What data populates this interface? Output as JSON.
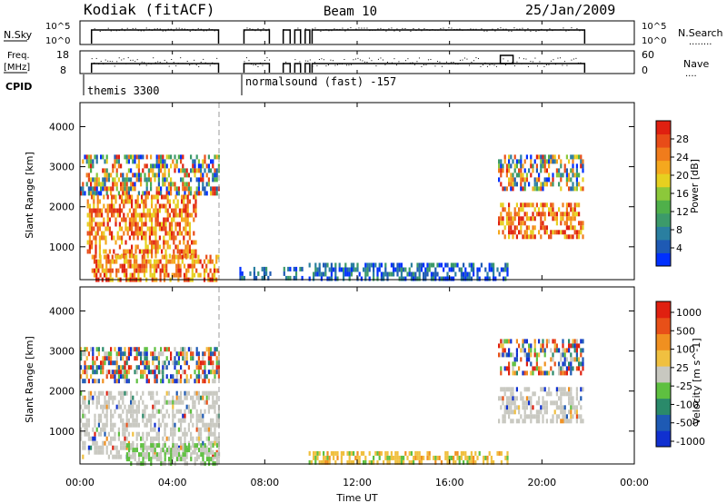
{
  "header": {
    "station": "Kodiak (fitACF)",
    "beam": "Beam 10",
    "date": "25/Jan/2009"
  },
  "strip_panels": {
    "nsky": {
      "left_label": "N.Sky",
      "left_ticks": [
        "10^5",
        "10^0"
      ],
      "right_label": "N.Search",
      "right_legend": "........",
      "right_ticks": [
        "10^5",
        "10^0"
      ]
    },
    "freq": {
      "left_label_1": "Freq.",
      "left_label_2": "[MHz]",
      "left_ticks": [
        "18",
        "8"
      ],
      "right_label": "Nave",
      "right_legend": "....",
      "right_ticks": [
        "60",
        "0"
      ]
    },
    "cpid": {
      "label": "CPID",
      "segments": [
        {
          "label": "themis 3300",
          "start_hour": 0
        },
        {
          "label": "normalsound (fast) -157",
          "start_hour": 7.2
        }
      ]
    }
  },
  "chart_data": [
    {
      "type": "heatmap",
      "name": "power",
      "ylabel": "Slant Range [km]",
      "yticks": [
        "1000",
        "2000",
        "3000",
        "4000"
      ],
      "ylim": [
        180,
        4600
      ],
      "xlim": [
        0,
        24
      ],
      "colorbar": {
        "label": "Power [dB]",
        "ticks": [
          "4",
          "8",
          "12",
          "16",
          "20",
          "24",
          "28"
        ],
        "colors": [
          "#0030ff",
          "#1e5ab4",
          "#2a7fa0",
          "#3c9a6a",
          "#4fb04a",
          "#8cc83a",
          "#e6d020",
          "#f5a81e",
          "#f07c1c",
          "#e84c18",
          "#e02010"
        ]
      },
      "regions": [
        {
          "t0": 0.0,
          "t1": 6.0,
          "r0": 2300,
          "r1": 3300,
          "level": "mixed"
        },
        {
          "t0": 0.3,
          "t1": 5.0,
          "r0": 800,
          "r1": 2300,
          "level": "high"
        },
        {
          "t0": 0.5,
          "t1": 6.0,
          "r0": 180,
          "r1": 800,
          "level": "high"
        },
        {
          "t0": 6.9,
          "t1": 8.2,
          "r0": 180,
          "r1": 500,
          "level": "low"
        },
        {
          "t0": 8.8,
          "t1": 9.6,
          "r0": 180,
          "r1": 500,
          "level": "low"
        },
        {
          "t0": 9.9,
          "t1": 18.5,
          "r0": 180,
          "r1": 600,
          "level": "low"
        },
        {
          "t0": 18.1,
          "t1": 21.8,
          "r0": 2500,
          "r1": 3300,
          "level": "mixed"
        },
        {
          "t0": 18.1,
          "t1": 21.8,
          "r0": 1300,
          "r1": 2100,
          "level": "high"
        }
      ]
    },
    {
      "type": "heatmap",
      "name": "velocity",
      "ylabel": "Slant Range [km]",
      "yticks": [
        "1000",
        "2000",
        "3000",
        "4000"
      ],
      "ylim": [
        180,
        4600
      ],
      "xlim": [
        0,
        24
      ],
      "colorbar": {
        "label": "Velocity [m s^-1]",
        "ticks": [
          "1000",
          "500",
          "100",
          "25",
          "-25",
          "-100",
          "-500",
          "-1000"
        ],
        "colors": [
          "#1030d0",
          "#1e5ab4",
          "#2a8a6a",
          "#5ec040",
          "#c8c8c0",
          "#f0c040",
          "#f09020",
          "#e85018",
          "#e02010"
        ]
      },
      "regions": [
        {
          "t0": 0.0,
          "t1": 6.0,
          "r0": 2300,
          "r1": 3100,
          "level": "mixed"
        },
        {
          "t0": 0.0,
          "t1": 6.0,
          "r0": 400,
          "r1": 2000,
          "level": "gray"
        },
        {
          "t0": 2.0,
          "t1": 6.0,
          "r0": 180,
          "r1": 700,
          "level": "green"
        },
        {
          "t0": 9.9,
          "t1": 18.5,
          "r0": 180,
          "r1": 500,
          "level": "orange"
        },
        {
          "t0": 18.1,
          "t1": 21.8,
          "r0": 2500,
          "r1": 3300,
          "level": "mixed"
        },
        {
          "t0": 18.1,
          "t1": 21.8,
          "r0": 1300,
          "r1": 2100,
          "level": "gray"
        }
      ]
    }
  ],
  "xaxis": {
    "ticks": [
      "00:00",
      "04:00",
      "08:00",
      "12:00",
      "16:00",
      "20:00",
      "00:00"
    ],
    "tick_hours": [
      0,
      4,
      8,
      12,
      16,
      20,
      24
    ],
    "label": "Time UT"
  }
}
